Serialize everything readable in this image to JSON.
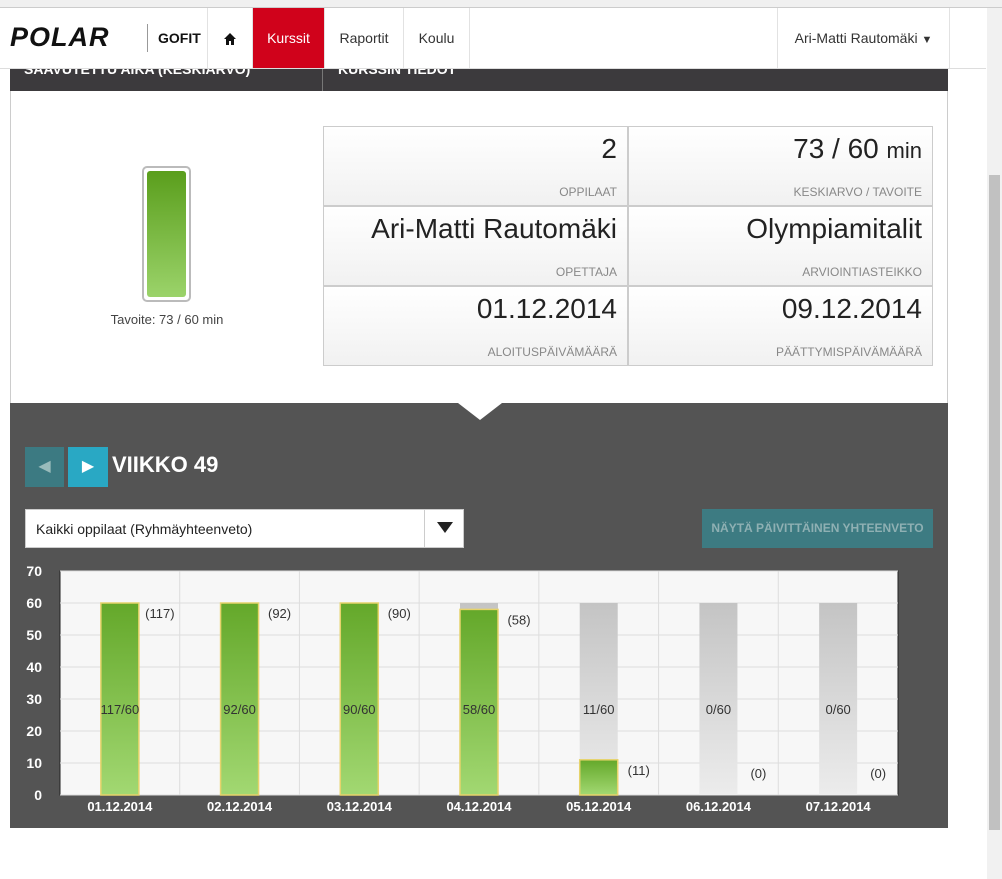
{
  "nav": {
    "logo": "POLAR",
    "product": "GOFIT",
    "items": [
      "Kurssit",
      "Raportit",
      "Koulu"
    ],
    "user": "Ari-Matti Rautomäki"
  },
  "sections": {
    "left_header": "SAAVUTETTU AIKA (KESKIARVO)",
    "right_header": "KURSSIN TIEDOT"
  },
  "gauge": {
    "caption": "Tavoite: 73 / 60 min"
  },
  "info": [
    {
      "value": "2",
      "label": "OPPILAAT"
    },
    {
      "value": "73 / 60",
      "unit": "min",
      "label": "KESKIARVO / TAVOITE"
    },
    {
      "value": "Ari-Matti Rautomäki",
      "label": "OPETTAJA"
    },
    {
      "value": "Olympiamitalit",
      "label": "ARVIOINTIASTEIKKO"
    },
    {
      "value": "01.12.2014",
      "label": "ALOITUSPÄIVÄMÄÄRÄ"
    },
    {
      "value": "09.12.2014",
      "label": "PÄÄTTYMISPÄIVÄMÄÄRÄ"
    }
  ],
  "week": "VIIKKO 49",
  "filter": "Kaikki oppilaat (Ryhmäyhteenveto)",
  "summary_button": "NÄYTÄ PÄIVITTÄINEN YHTEENVETO",
  "chart_data": {
    "type": "bar",
    "categories": [
      "01.12.2014",
      "02.12.2014",
      "03.12.2014",
      "04.12.2014",
      "05.12.2014",
      "06.12.2014",
      "07.12.2014"
    ],
    "values": [
      60,
      60,
      60,
      58,
      11,
      0,
      0
    ],
    "target_values": [
      60,
      60,
      60,
      60,
      60,
      60,
      60
    ],
    "minute_labels": [
      "(117)",
      "(92)",
      "(90)",
      "(58)",
      "(11)",
      "(0)",
      "(0)"
    ],
    "ratio_labels": [
      "117/60",
      "92/60",
      "90/60",
      "58/60",
      "11/60",
      "0/60",
      "0/60"
    ],
    "color": "#64a82a",
    "target_color": "#c4c4c4",
    "ylim": [
      0,
      70
    ],
    "yticks": [
      0,
      10,
      20,
      30,
      40,
      50,
      60,
      70
    ],
    "grid": true
  }
}
